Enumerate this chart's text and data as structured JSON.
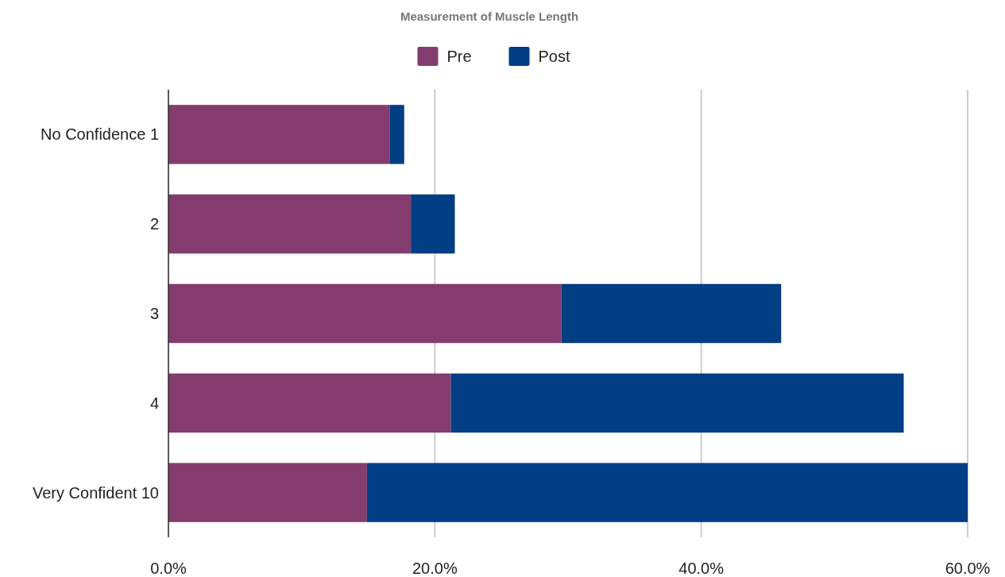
{
  "chart_data": {
    "type": "bar",
    "title": "Measurement of Muscle Length",
    "orientation": "horizontal",
    "stacked": true,
    "categories": [
      "No Confidence 1",
      "2",
      "3",
      "4",
      "Very Confident 10"
    ],
    "series": [
      {
        "name": "Pre",
        "color": "#843c6f",
        "values": [
          16.6,
          18.2,
          29.5,
          21.2,
          14.9
        ]
      },
      {
        "name": "Post",
        "color": "#023e84",
        "values": [
          1.1,
          3.3,
          16.5,
          34.0,
          45.1
        ]
      }
    ],
    "xlim": [
      0,
      60
    ],
    "xticks": [
      {
        "value": 0,
        "label": "0.0%"
      },
      {
        "value": 20,
        "label": "20.0%"
      },
      {
        "value": 40,
        "label": "40.0%"
      },
      {
        "value": 60,
        "label": "60.0%"
      }
    ],
    "grid": "x",
    "legend": "top"
  }
}
